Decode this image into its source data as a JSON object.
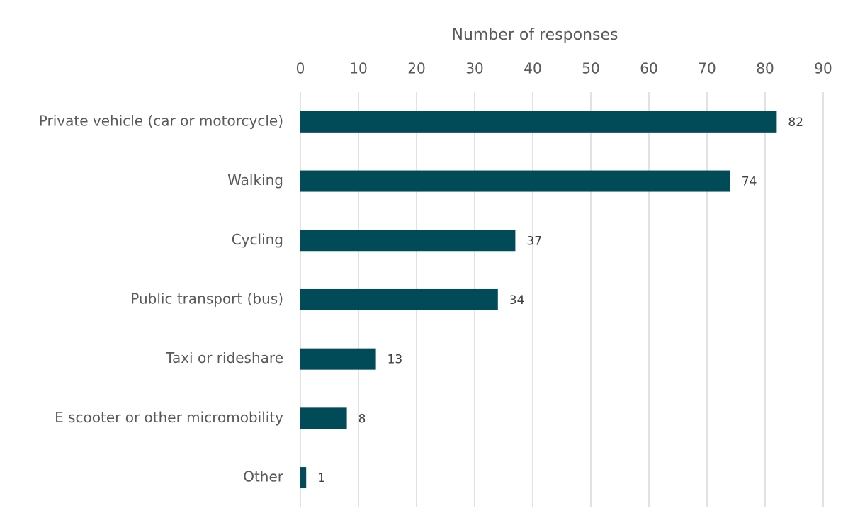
{
  "chart_data": {
    "type": "bar",
    "orientation": "horizontal",
    "x_label": "Number of responses",
    "categories": [
      "Private vehicle (car or motorcycle)",
      "Walking",
      "Cycling",
      "Public transport (bus)",
      "Taxi or rideshare",
      "E scooter or other micromobility",
      "Other"
    ],
    "values": [
      82,
      74,
      37,
      34,
      13,
      8,
      1
    ],
    "color": "#004b57",
    "xlim": [
      0,
      90
    ],
    "xticks": [
      0,
      10,
      20,
      30,
      40,
      50,
      60,
      70,
      80,
      90
    ],
    "grid": true
  }
}
